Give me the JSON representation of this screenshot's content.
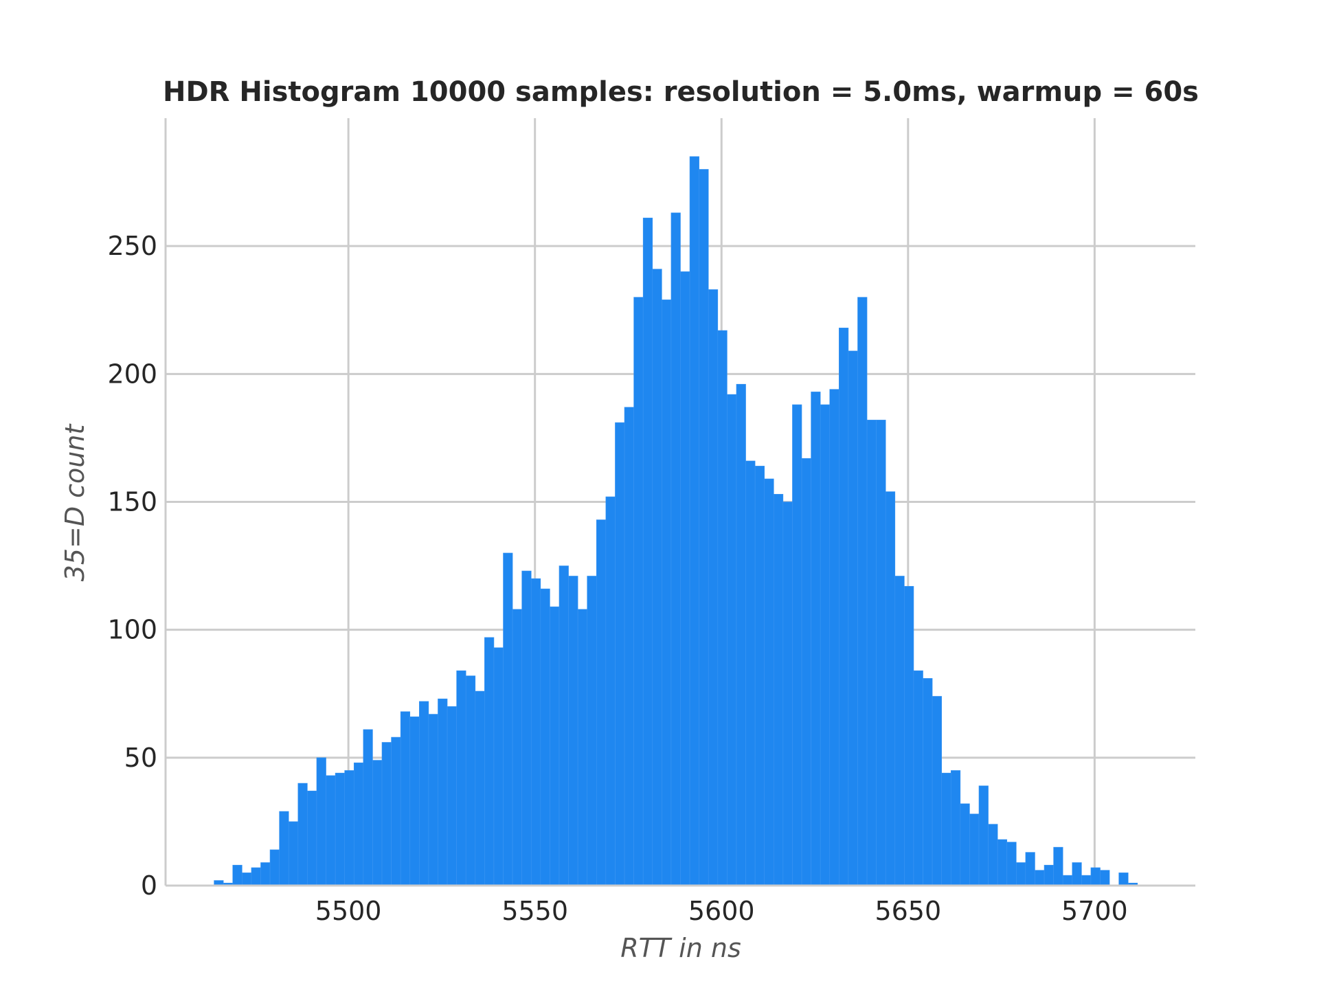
{
  "chart_data": {
    "type": "bar",
    "title": "HDR Histogram 10000 samples: resolution = 5.0ms, warmup = 60s",
    "xlabel": "RTT in ns",
    "ylabel": "35=D count",
    "bar_color": "#1f87f0",
    "grid": true,
    "xlim": [
      5451,
      5727
    ],
    "ylim": [
      0,
      300
    ],
    "xticks": [
      "5500",
      "5550",
      "5600",
      "5650",
      "5700"
    ],
    "yticks": [
      "0",
      "50",
      "100",
      "150",
      "200",
      "250"
    ],
    "x_start": 5464,
    "bin_width": 2.5,
    "values": [
      2,
      1,
      8,
      5,
      7,
      9,
      14,
      29,
      25,
      40,
      37,
      50,
      43,
      44,
      45,
      48,
      61,
      49,
      56,
      58,
      68,
      66,
      72,
      67,
      73,
      70,
      84,
      82,
      76,
      97,
      93,
      130,
      108,
      123,
      120,
      116,
      109,
      125,
      121,
      108,
      121,
      143,
      152,
      181,
      187,
      230,
      261,
      241,
      229,
      263,
      240,
      285,
      280,
      233,
      217,
      192,
      196,
      166,
      164,
      159,
      153,
      150,
      188,
      167,
      193,
      188,
      194,
      218,
      209,
      230,
      182,
      182,
      154,
      121,
      117,
      84,
      81,
      74,
      44,
      45,
      32,
      28,
      39,
      24,
      18,
      17,
      9,
      13,
      6,
      8,
      15,
      4,
      9,
      4,
      7,
      6,
      0,
      5,
      1
    ]
  }
}
